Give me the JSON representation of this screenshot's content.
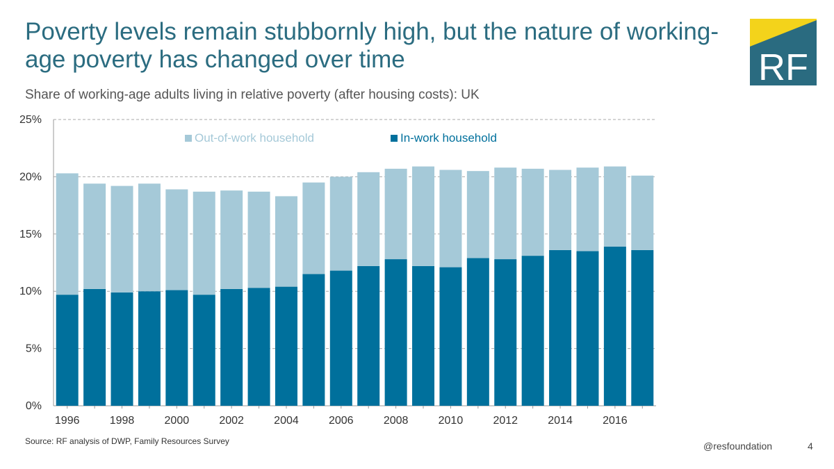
{
  "header": {
    "title": "Poverty levels remain stubbornly high, but the nature of working-age poverty has changed over time",
    "subtitle": "Share of working-age adults living in relative poverty (after housing costs): UK"
  },
  "logo": {
    "text": "RF",
    "icon": "rf-logo-icon",
    "colors": {
      "teal": "#2a6b80",
      "yellow": "#f3d31b"
    }
  },
  "footer": {
    "source": "Source: RF analysis of DWP, Family Resources Survey",
    "handle": "@resfoundation",
    "page_number": "4"
  },
  "colors": {
    "in_work": "#00709c",
    "out_of_work": "#a5c9d8",
    "grid": "#aaaaaa",
    "axis_text": "#333333"
  },
  "chart_data": {
    "type": "bar",
    "stacked": true,
    "categories": [
      "1996",
      "1997",
      "1998",
      "1999",
      "2000",
      "2001",
      "2002",
      "2003",
      "2004",
      "2005",
      "2006",
      "2007",
      "2008",
      "2009",
      "2010",
      "2011",
      "2012",
      "2013",
      "2014",
      "2015",
      "2016",
      "2017"
    ],
    "x_tick_labels": [
      "1996",
      "",
      "1998",
      "",
      "2000",
      "",
      "2002",
      "",
      "2004",
      "",
      "2006",
      "",
      "2008",
      "",
      "2010",
      "",
      "2012",
      "",
      "2014",
      "",
      "2016",
      ""
    ],
    "series": [
      {
        "name": "In-work household",
        "values": [
          9.7,
          10.2,
          9.9,
          10.0,
          10.1,
          9.7,
          10.2,
          10.3,
          10.4,
          11.5,
          11.8,
          12.2,
          12.8,
          12.2,
          12.1,
          12.9,
          12.8,
          13.1,
          13.6,
          13.5,
          13.9,
          13.6
        ]
      },
      {
        "name": "Out-of-work household",
        "values": [
          10.6,
          9.2,
          9.3,
          9.4,
          8.8,
          9.0,
          8.6,
          8.4,
          7.9,
          8.0,
          8.2,
          8.2,
          7.9,
          8.7,
          8.5,
          7.6,
          8.0,
          7.6,
          7.0,
          7.3,
          7.0,
          6.5
        ]
      }
    ],
    "legend": [
      "Out-of-work household",
      "In-work household"
    ],
    "legend_position": "top",
    "y_ticks": [
      "0%",
      "5%",
      "10%",
      "15%",
      "20%",
      "25%"
    ],
    "ylim": [
      0,
      25
    ],
    "y_unit": "%",
    "title": "",
    "xlabel": "",
    "ylabel": ""
  }
}
